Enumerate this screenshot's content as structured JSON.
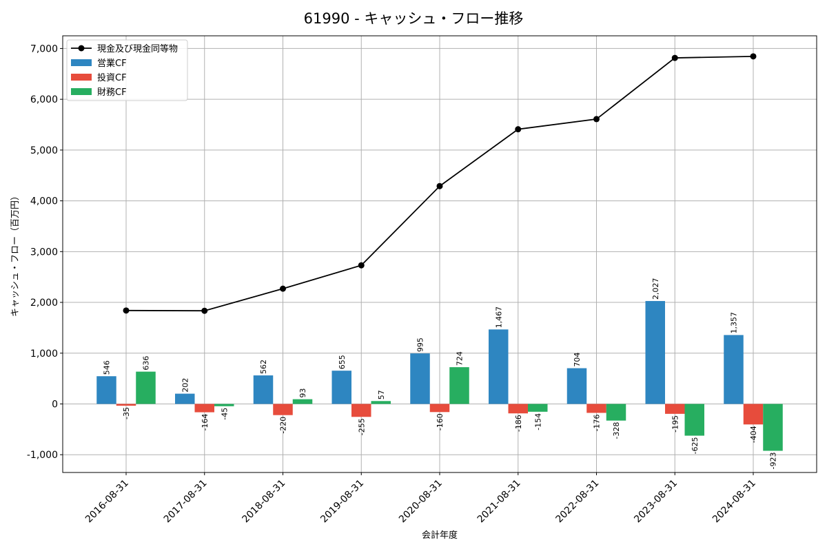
{
  "chart_data": {
    "type": "bar",
    "title": "61990 - キャッシュ・フロー推移",
    "xlabel": "会計年度",
    "ylabel": "キャッシュ・フロー（百万円）",
    "categories": [
      "2016-08-31",
      "2017-08-31",
      "2018-08-31",
      "2019-08-31",
      "2020-08-31",
      "2021-08-31",
      "2022-08-31",
      "2023-08-31",
      "2024-08-31"
    ],
    "ylim": [
      -1350,
      7250
    ],
    "yticks": [
      -1000,
      0,
      1000,
      2000,
      3000,
      4000,
      5000,
      6000,
      7000
    ],
    "ytick_labels": [
      "-1,000",
      "0",
      "1,000",
      "2,000",
      "3,000",
      "4,000",
      "5,000",
      "6,000",
      "7,000"
    ],
    "grid": true,
    "legend_position": "top-left",
    "series": [
      {
        "name": "営業CF",
        "kind": "bar",
        "color": "#2e86c1",
        "values": [
          546,
          202,
          562,
          655,
          995,
          1467,
          704,
          2027,
          1357
        ],
        "labels": [
          "546",
          "202",
          "562",
          "655",
          "995",
          "1,467",
          "704",
          "2,027",
          "1,357"
        ]
      },
      {
        "name": "投資CF",
        "kind": "bar",
        "color": "#e74c3c",
        "values": [
          -35,
          -164,
          -220,
          -255,
          -160,
          -186,
          -176,
          -195,
          -404
        ],
        "labels": [
          "-35",
          "-164",
          "-220",
          "-255",
          "-160",
          "-186",
          "-176",
          "-195",
          "-404"
        ]
      },
      {
        "name": "財務CF",
        "kind": "bar",
        "color": "#27ae60",
        "values": [
          636,
          -45,
          93,
          57,
          724,
          -154,
          -328,
          -625,
          -923
        ],
        "labels": [
          "636",
          "-45",
          "93",
          "57",
          "724",
          "-154",
          "-328",
          "-625",
          "-923"
        ]
      },
      {
        "name": "現金及び現金同等物",
        "kind": "line",
        "color": "#000000",
        "values": [
          1840,
          1835,
          2270,
          2730,
          4290,
          5410,
          5610,
          6815,
          6845
        ]
      }
    ]
  }
}
